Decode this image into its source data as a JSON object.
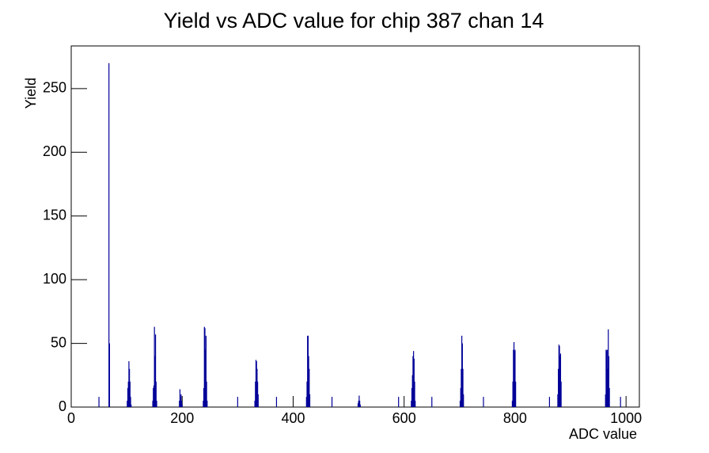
{
  "chart_data": {
    "type": "histogram",
    "title": "Yield vs ADC value for chip 387 chan 14",
    "x_label": "ADC value",
    "y_label": "Yield",
    "color": "#000099",
    "x": [
      50,
      null,
      68,
      69,
      null,
      101,
      102,
      103,
      104,
      105,
      106,
      107,
      108,
      null,
      147,
      148,
      149,
      150,
      151,
      152,
      153,
      154,
      null,
      195,
      196,
      197,
      198,
      199,
      200,
      null,
      238,
      239,
      240,
      241,
      242,
      243,
      244,
      245,
      null,
      300,
      null,
      331,
      332,
      333,
      334,
      335,
      336,
      337,
      null,
      370,
      null,
      424,
      425,
      426,
      427,
      428,
      429,
      430,
      null,
      470,
      null,
      517,
      518,
      519,
      520,
      521,
      null,
      590,
      null,
      613,
      614,
      615,
      616,
      617,
      618,
      619,
      620,
      null,
      650,
      null,
      701,
      702,
      703,
      704,
      705,
      706,
      707,
      null,
      743,
      null,
      795,
      796,
      797,
      798,
      799,
      800,
      801,
      null,
      862,
      null,
      877,
      878,
      879,
      880,
      881,
      882,
      883,
      null,
      963,
      964,
      965,
      966,
      967,
      968,
      969,
      970,
      null,
      990
    ],
    "values": [
      8,
      null,
      270,
      50,
      null,
      5,
      15,
      20,
      36,
      30,
      20,
      8,
      2,
      null,
      5,
      15,
      17,
      63,
      40,
      57,
      20,
      5,
      null,
      5,
      14,
      8,
      10,
      5,
      2,
      null,
      5,
      15,
      63,
      62,
      45,
      56,
      20,
      5,
      null,
      8,
      null,
      5,
      20,
      37,
      36,
      30,
      20,
      10,
      null,
      8,
      null,
      8,
      20,
      56,
      56,
      40,
      30,
      10,
      null,
      8,
      null,
      3,
      5,
      9,
      5,
      2,
      null,
      8,
      null,
      5,
      15,
      25,
      40,
      44,
      38,
      20,
      5,
      null,
      8,
      null,
      5,
      15,
      30,
      56,
      50,
      30,
      10,
      null,
      8,
      null,
      5,
      20,
      45,
      51,
      44,
      45,
      20,
      null,
      8,
      null,
      10,
      30,
      49,
      48,
      40,
      42,
      20,
      null,
      10,
      45,
      44,
      45,
      30,
      61,
      40,
      15,
      null,
      8
    ],
    "xlim": [
      0,
      1024
    ],
    "xticks": [
      0,
      200,
      400,
      600,
      800,
      1000
    ],
    "ylim": [
      0,
      283.5
    ],
    "yticks": [
      0,
      50,
      100,
      150,
      200,
      250
    ]
  }
}
